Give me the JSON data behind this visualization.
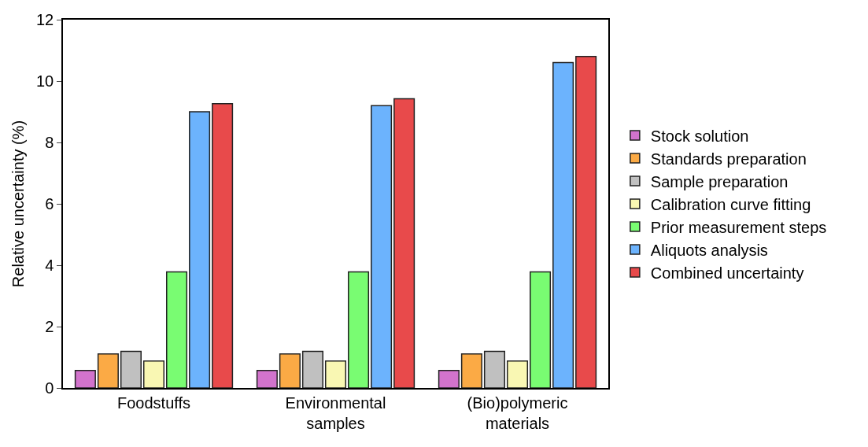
{
  "chart_data": {
    "type": "bar",
    "ylabel": "Relative uncertainty (%)",
    "categories": [
      "Foodstuffs",
      "Environmental samples",
      "(Bio)polymeric materials"
    ],
    "series": [
      {
        "name": "Stock solution",
        "color": "#d273cc",
        "values": [
          0.57,
          0.57,
          0.57
        ]
      },
      {
        "name": "Standards preparation",
        "color": "#fbaa45",
        "values": [
          1.11,
          1.11,
          1.11
        ]
      },
      {
        "name": "Sample preparation",
        "color": "#c0c0c0",
        "values": [
          1.19,
          1.19,
          1.19
        ]
      },
      {
        "name": "Calibration curve fitting",
        "color": "#f9f7b3",
        "values": [
          0.88,
          0.88,
          0.88
        ]
      },
      {
        "name": "Prior measurement steps",
        "color": "#79fc72",
        "values": [
          3.78,
          3.78,
          3.78
        ]
      },
      {
        "name": "Aliquots analysis",
        "color": "#6cb3fd",
        "values": [
          9.0,
          9.2,
          10.6
        ]
      },
      {
        "name": "Combined uncertainty",
        "color": "#e84a4b",
        "values": [
          9.26,
          9.42,
          10.8
        ]
      }
    ],
    "ylim": [
      0,
      12
    ],
    "yticks": [
      0,
      2,
      4,
      6,
      8,
      10,
      12
    ],
    "grid": false,
    "legend": "right"
  }
}
